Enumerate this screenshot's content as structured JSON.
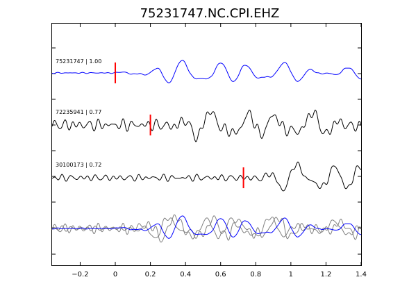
{
  "chart_data": {
    "type": "line",
    "title": "75231747.NC.CPI.EHZ",
    "xlabel": "",
    "ylabel": "",
    "xlim": [
      -0.36,
      1.4
    ],
    "xticks": [
      -0.2,
      0,
      0.2,
      0.4,
      0.6,
      0.8,
      1,
      1.2,
      1.4
    ],
    "xtick_labels": [
      "−0.2",
      "0",
      "0.2",
      "0.4",
      "0.6",
      "0.8",
      "1",
      "1.2",
      "1.4"
    ],
    "grid": false,
    "colors": {
      "reference_trace": "#0000ff",
      "match_trace": "#000000",
      "overlay_trace": "#808080",
      "pick_marker": "#ff0000"
    },
    "traces": [
      {
        "label": "75231747 | 1.00",
        "event_id": "75231747",
        "correlation": 1.0,
        "pick_time": 0.0,
        "color": "#0000ff"
      },
      {
        "label": "72235941 | 0.77",
        "event_id": "72235941",
        "correlation": 0.77,
        "pick_time": 0.2,
        "color": "#000000"
      },
      {
        "label": "30100173 | 0.72",
        "event_id": "30100173",
        "correlation": 0.72,
        "pick_time": 0.73,
        "color": "#000000"
      }
    ],
    "overlay": {
      "description": "stack of aligned traces",
      "series": [
        "75231747",
        "72235941",
        "30100173"
      ]
    }
  }
}
